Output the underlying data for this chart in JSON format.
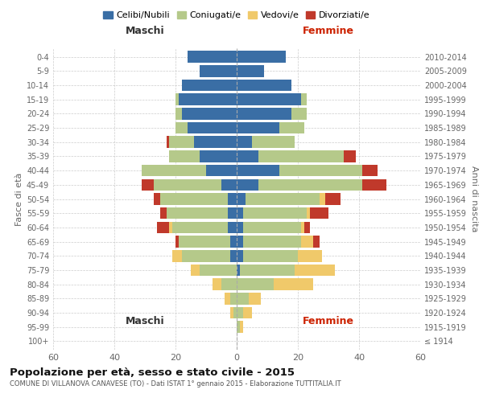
{
  "age_groups": [
    "100+",
    "95-99",
    "90-94",
    "85-89",
    "80-84",
    "75-79",
    "70-74",
    "65-69",
    "60-64",
    "55-59",
    "50-54",
    "45-49",
    "40-44",
    "35-39",
    "30-34",
    "25-29",
    "20-24",
    "15-19",
    "10-14",
    "5-9",
    "0-4"
  ],
  "birth_years": [
    "≤ 1914",
    "1915-1919",
    "1920-1924",
    "1925-1929",
    "1930-1934",
    "1935-1939",
    "1940-1944",
    "1945-1949",
    "1950-1954",
    "1955-1959",
    "1960-1964",
    "1965-1969",
    "1970-1974",
    "1975-1979",
    "1980-1984",
    "1985-1989",
    "1990-1994",
    "1995-1999",
    "2000-2004",
    "2005-2009",
    "2010-2014"
  ],
  "male": {
    "celibi": [
      0,
      0,
      0,
      0,
      0,
      0,
      2,
      2,
      3,
      3,
      3,
      5,
      10,
      12,
      14,
      16,
      18,
      19,
      18,
      12,
      16
    ],
    "coniugati": [
      0,
      0,
      1,
      2,
      5,
      12,
      16,
      17,
      18,
      20,
      22,
      22,
      21,
      10,
      8,
      4,
      2,
      1,
      0,
      0,
      0
    ],
    "vedovi": [
      0,
      0,
      1,
      2,
      3,
      3,
      3,
      0,
      1,
      0,
      0,
      0,
      0,
      0,
      0,
      0,
      0,
      0,
      0,
      0,
      0
    ],
    "divorziati": [
      0,
      0,
      0,
      0,
      0,
      0,
      0,
      1,
      4,
      2,
      2,
      4,
      0,
      0,
      1,
      0,
      0,
      0,
      0,
      0,
      0
    ]
  },
  "female": {
    "nubili": [
      0,
      0,
      0,
      0,
      0,
      1,
      2,
      2,
      2,
      2,
      3,
      7,
      14,
      7,
      5,
      14,
      18,
      21,
      18,
      9,
      16
    ],
    "coniugate": [
      0,
      1,
      2,
      4,
      12,
      18,
      18,
      19,
      19,
      21,
      24,
      34,
      27,
      28,
      14,
      8,
      5,
      2,
      0,
      0,
      0
    ],
    "vedove": [
      0,
      1,
      3,
      4,
      13,
      13,
      8,
      4,
      1,
      1,
      2,
      0,
      0,
      0,
      0,
      0,
      0,
      0,
      0,
      0,
      0
    ],
    "divorziate": [
      0,
      0,
      0,
      0,
      0,
      0,
      0,
      2,
      2,
      6,
      5,
      8,
      5,
      4,
      0,
      0,
      0,
      0,
      0,
      0,
      0
    ]
  },
  "colors": {
    "celibi": "#3a6ea5",
    "coniugati": "#b5c98a",
    "vedovi": "#f0c96a",
    "divorziati": "#c0392b"
  },
  "title": "Popolazione per età, sesso e stato civile - 2015",
  "subtitle": "COMUNE DI VILLANOVA CANAVESE (TO) - Dati ISTAT 1° gennaio 2015 - Elaborazione TUTTITALIA.IT",
  "xlabel_left": "Maschi",
  "xlabel_right": "Femmine",
  "ylabel_left": "Fasce di età",
  "ylabel_right": "Anni di nascita",
  "xlim": 60,
  "background_color": "#ffffff",
  "legend_labels": [
    "Celibi/Nubili",
    "Coniugati/e",
    "Vedovi/e",
    "Divorziati/e"
  ]
}
